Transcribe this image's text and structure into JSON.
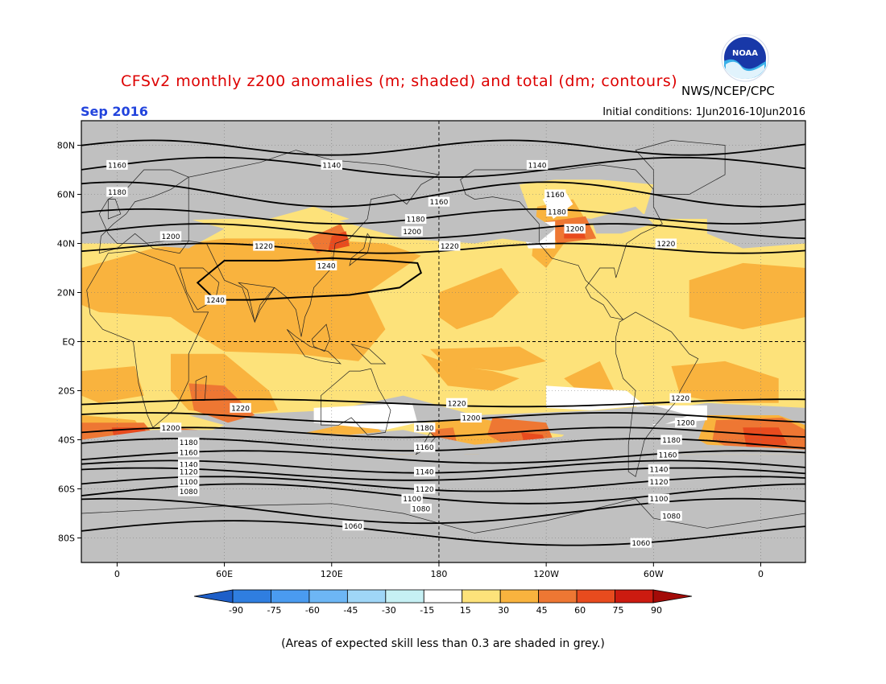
{
  "header": {
    "title": "CFSv2 monthly z200 anomalies (m; shaded) and total (dm; contours)",
    "agency": "NWS/NCEP/CPC",
    "month": "Sep 2016",
    "initial_conditions": "Initial conditions: 1Jun2016-10Jun2016",
    "logo_text": "NOAA"
  },
  "colors": {
    "title": "#dd0000",
    "month": "#2244dd",
    "skill_grey": "#c0c0c0",
    "ocean_land_bg": "#c0c0c0",
    "contour": "#000000",
    "levels": {
      "15-30": "#fde27a",
      "30-45": "#f9b33e",
      "45-60": "#ee7733",
      "60-75": "#e84b1e",
      "75-90": "#cc1b10"
    }
  },
  "map": {
    "lat_labels": [
      "80N",
      "60N",
      "40N",
      "20N",
      "EQ",
      "20S",
      "40S",
      "60S",
      "80S"
    ],
    "lon_labels": [
      "0",
      "60E",
      "120E",
      "180",
      "120W",
      "60W",
      "0"
    ]
  },
  "contours": {
    "labels": [
      {
        "text": "1160",
        "lon": 0,
        "lat": 72
      },
      {
        "text": "1140",
        "lon": 120,
        "lat": 72
      },
      {
        "text": "1140",
        "lon": 235,
        "lat": 72
      },
      {
        "text": "1180",
        "lon": 0,
        "lat": 61
      },
      {
        "text": "1160",
        "lon": 180,
        "lat": 57
      },
      {
        "text": "1160",
        "lon": 245,
        "lat": 60
      },
      {
        "text": "1180",
        "lon": 167,
        "lat": 50
      },
      {
        "text": "1180",
        "lon": 246,
        "lat": 53
      },
      {
        "text": "1200",
        "lon": 165,
        "lat": 45
      },
      {
        "text": "1200",
        "lon": 256,
        "lat": 46
      },
      {
        "text": "1200",
        "lon": 30,
        "lat": 43
      },
      {
        "text": "1220",
        "lon": 82,
        "lat": 39
      },
      {
        "text": "1220",
        "lon": 186,
        "lat": 39
      },
      {
        "text": "1220",
        "lon": 307,
        "lat": 40
      },
      {
        "text": "1240",
        "lon": 117,
        "lat": 31
      },
      {
        "text": "1240",
        "lon": 55,
        "lat": 17
      },
      {
        "text": "1220",
        "lon": 190,
        "lat": -25
      },
      {
        "text": "1220",
        "lon": 315,
        "lat": -23
      },
      {
        "text": "1220",
        "lon": 69,
        "lat": -27
      },
      {
        "text": "1200",
        "lon": 198,
        "lat": -31
      },
      {
        "text": "1200",
        "lon": 318,
        "lat": -33
      },
      {
        "text": "1200",
        "lon": 30,
        "lat": -35
      },
      {
        "text": "1180",
        "lon": 172,
        "lat": -35
      },
      {
        "text": "1180",
        "lon": 310,
        "lat": -40
      },
      {
        "text": "1180",
        "lon": 40,
        "lat": -41
      },
      {
        "text": "1160",
        "lon": 172,
        "lat": -43
      },
      {
        "text": "1160",
        "lon": 308,
        "lat": -46
      },
      {
        "text": "1160",
        "lon": 40,
        "lat": -45
      },
      {
        "text": "1140",
        "lon": 172,
        "lat": -53
      },
      {
        "text": "1140",
        "lon": 303,
        "lat": -52
      },
      {
        "text": "1140",
        "lon": 40,
        "lat": -50
      },
      {
        "text": "1120",
        "lon": 40,
        "lat": -53
      },
      {
        "text": "1120",
        "lon": 172,
        "lat": -60
      },
      {
        "text": "1120",
        "lon": 303,
        "lat": -57
      },
      {
        "text": "1100",
        "lon": 40,
        "lat": -57
      },
      {
        "text": "1100",
        "lon": 165,
        "lat": -64
      },
      {
        "text": "1100",
        "lon": 303,
        "lat": -64
      },
      {
        "text": "1080",
        "lon": 40,
        "lat": -61
      },
      {
        "text": "1080",
        "lon": 170,
        "lat": -68
      },
      {
        "text": "1080",
        "lon": 310,
        "lat": -71
      },
      {
        "text": "1060",
        "lon": 132,
        "lat": -75
      },
      {
        "text": "1060",
        "lon": 293,
        "lat": -82
      }
    ]
  },
  "legend": {
    "ticks": [
      "-90",
      "-75",
      "-60",
      "-45",
      "-30",
      "-15",
      "15",
      "30",
      "45",
      "60",
      "75",
      "90"
    ],
    "colors": [
      "#1e5fc8",
      "#2f7ee0",
      "#4a9bf0",
      "#6db6f5",
      "#9fd6f7",
      "#c6f0f4",
      "#ffffff",
      "#fde27a",
      "#f9b33e",
      "#ee7733",
      "#e84b1e",
      "#cc1b10",
      "#a30b08"
    ]
  },
  "footer": "(Areas of expected skill less than 0.3 are shaded in grey.)"
}
